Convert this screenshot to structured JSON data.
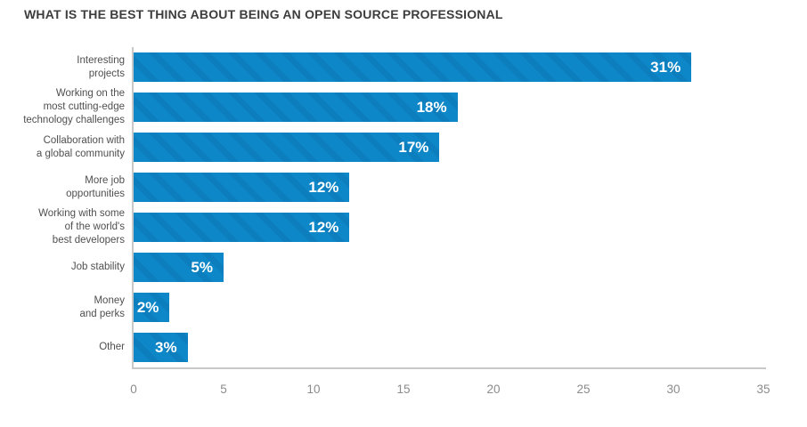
{
  "title": "WHAT IS THE BEST THING ABOUT BEING AN OPEN SOURCE PROFESSIONAL",
  "chart_data": {
    "type": "bar",
    "orientation": "horizontal",
    "title": "WHAT IS THE BEST THING ABOUT BEING AN OPEN SOURCE PROFESSIONAL",
    "categories": [
      "Interesting projects",
      "Working on the most cutting-edge technology challenges",
      "Collaboration with a global community",
      "More job opportunities",
      "Working with some of the world's best developers",
      "Job stability",
      "Money and perks",
      "Other"
    ],
    "label_lines": [
      [
        "Interesting",
        "projects"
      ],
      [
        "Working on the",
        "most cutting-edge",
        "technology challenges"
      ],
      [
        "Collaboration with",
        "a global community"
      ],
      [
        "More job",
        "opportunities"
      ],
      [
        "Working with some",
        "of the world's",
        "best developers"
      ],
      [
        "Job stability"
      ],
      [
        "Money",
        "and perks"
      ],
      [
        "Other"
      ]
    ],
    "values": [
      31,
      18,
      17,
      12,
      12,
      5,
      2,
      3
    ],
    "value_labels": [
      "31%",
      "18%",
      "17%",
      "12%",
      "12%",
      "5%",
      "2%",
      "3%"
    ],
    "xlabel": "",
    "ylabel": "",
    "xlim": [
      0,
      35
    ],
    "x_ticks": [
      0,
      5,
      10,
      15,
      20,
      25,
      30,
      35
    ],
    "grid": false,
    "legend": false,
    "bar_hatch": "diagonal-backslash",
    "colors": {
      "bar": "#0e87c8",
      "hatch": "rgba(0,50,95,0.10)",
      "value_text": "#ffffff",
      "title_text": "#3d3d3d",
      "category_text": "#4f4f4f",
      "tick_text": "#8b8b8b",
      "axis_line": "#c8c8c8"
    }
  }
}
